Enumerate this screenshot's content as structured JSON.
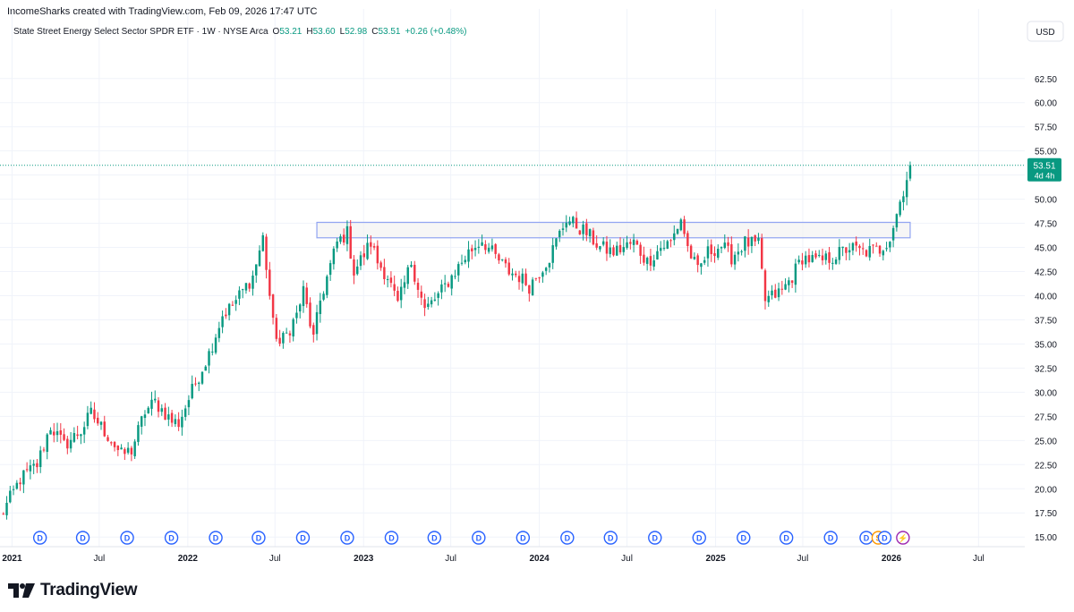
{
  "attribution": "IncomeSharks created with TradingView.com, Feb 09, 2026 17:47 UTC",
  "legend": {
    "title": "State Street Energy Select Sector SPDR ETF · 1W · NYSE Arca",
    "o_label": "O",
    "o": "53.21",
    "h_label": "H",
    "h": "53.60",
    "l_label": "L",
    "l": "52.98",
    "c_label": "C",
    "c": "53.51",
    "change": "+0.26 (+0.48%)"
  },
  "currency_label": "USD",
  "price_badge": {
    "price": "53.51",
    "countdown": "4d 4h"
  },
  "brand": "TradingView",
  "event_markers": [
    {
      "label": "D",
      "date": "2021-02-28"
    },
    {
      "label": "D",
      "date": "2021-05-28"
    },
    {
      "label": "D",
      "date": "2021-08-28"
    },
    {
      "label": "D",
      "date": "2021-11-28"
    },
    {
      "label": "D",
      "date": "2022-02-28"
    },
    {
      "label": "D",
      "date": "2022-05-28"
    },
    {
      "label": "D",
      "date": "2022-08-28"
    },
    {
      "label": "D",
      "date": "2022-11-28"
    },
    {
      "label": "D",
      "date": "2023-02-28"
    },
    {
      "label": "D",
      "date": "2023-05-28"
    },
    {
      "label": "D",
      "date": "2023-08-28"
    },
    {
      "label": "D",
      "date": "2023-11-28"
    },
    {
      "label": "D",
      "date": "2024-02-28"
    },
    {
      "label": "D",
      "date": "2024-05-28"
    },
    {
      "label": "D",
      "date": "2024-08-28"
    },
    {
      "label": "D",
      "date": "2024-11-28"
    },
    {
      "label": "D",
      "date": "2025-02-28"
    },
    {
      "label": "D",
      "date": "2025-05-28"
    },
    {
      "label": "D",
      "date": "2025-08-28"
    },
    {
      "label": "D",
      "date": "2025-11-10"
    },
    {
      "label": "S",
      "date": "2025-12-05"
    },
    {
      "label": "D",
      "date": "2025-12-18"
    },
    {
      "label": "⚡",
      "date": "2026-01-25"
    }
  ],
  "colors": {
    "up": "#089981",
    "down": "#f23645",
    "grid": "#f0f3fa",
    "axis_text": "#131722",
    "zone_border": "#90a4f2",
    "zone_fill": "#f0f0f0",
    "dividend_marker": "#2962ff",
    "split_marker": "#ff9800",
    "lightning_marker": "#9c27b0",
    "last_price_line": "#089981"
  },
  "chart_data": {
    "type": "candlestick",
    "title": "State Street Energy Select Sector SPDR ETF · 1W · NYSE Arca",
    "interval": "1W",
    "ylabel": "USD",
    "y_scale": "linear",
    "ylim": [
      14.0,
      66.0
    ],
    "y_ticks": [
      15.0,
      17.5,
      20.0,
      22.5,
      25.0,
      27.5,
      30.0,
      32.5,
      35.0,
      37.5,
      40.0,
      42.5,
      45.0,
      47.5,
      50.0,
      52.5,
      55.0,
      57.5,
      60.0,
      62.5
    ],
    "x_range": [
      "2020-12-07",
      "2026-10-05"
    ],
    "x_ticks": [
      {
        "label": "2021",
        "date": "2021-01-01"
      },
      {
        "label": "Jul",
        "date": "2021-07-01"
      },
      {
        "label": "2022",
        "date": "2022-01-01"
      },
      {
        "label": "Jul",
        "date": "2022-07-01"
      },
      {
        "label": "2023",
        "date": "2023-01-01"
      },
      {
        "label": "Jul",
        "date": "2023-07-01"
      },
      {
        "label": "2024",
        "date": "2024-01-01"
      },
      {
        "label": "Jul",
        "date": "2024-07-01"
      },
      {
        "label": "2025",
        "date": "2025-01-01"
      },
      {
        "label": "Jul",
        "date": "2025-07-01"
      },
      {
        "label": "2026",
        "date": "2026-01-01"
      },
      {
        "label": "Jul",
        "date": "2026-07-01"
      }
    ],
    "grid": true,
    "last_price": 53.51,
    "resistance_zone": {
      "from": "2022-09-26",
      "to": "2026-02-09",
      "low": 46.0,
      "high": 47.6
    },
    "anchors": [
      [
        "2020-12-07",
        17.0
      ],
      [
        "2021-01-18",
        21.0
      ],
      [
        "2021-02-22",
        22.5
      ],
      [
        "2021-03-22",
        26.5
      ],
      [
        "2021-04-19",
        24.5
      ],
      [
        "2021-05-24",
        26.0
      ],
      [
        "2021-06-14",
        27.8
      ],
      [
        "2021-07-19",
        25.5
      ],
      [
        "2021-08-16",
        23.5
      ],
      [
        "2021-09-06",
        24.0
      ],
      [
        "2021-10-04",
        28.0
      ],
      [
        "2021-10-25",
        29.0
      ],
      [
        "2021-11-29",
        27.0
      ],
      [
        "2021-12-13",
        26.8
      ],
      [
        "2022-01-17",
        31.0
      ],
      [
        "2022-02-14",
        34.0
      ],
      [
        "2022-03-14",
        38.0
      ],
      [
        "2022-04-04",
        39.0
      ],
      [
        "2022-05-16",
        42.0
      ],
      [
        "2022-06-06",
        46.0
      ],
      [
        "2022-06-27",
        37.0
      ],
      [
        "2022-07-11",
        35.0
      ],
      [
        "2022-07-25",
        36.0
      ],
      [
        "2022-08-15",
        38.0
      ],
      [
        "2022-08-29",
        40.5
      ],
      [
        "2022-09-19",
        35.5
      ],
      [
        "2022-10-03",
        39.5
      ],
      [
        "2022-11-07",
        45.5
      ],
      [
        "2022-11-28",
        46.5
      ],
      [
        "2022-12-12",
        42.5
      ],
      [
        "2023-01-16",
        45.5
      ],
      [
        "2023-01-30",
        43.5
      ],
      [
        "2023-02-20",
        42.0
      ],
      [
        "2023-03-13",
        39.0
      ],
      [
        "2023-04-10",
        43.5
      ],
      [
        "2023-05-08",
        38.5
      ],
      [
        "2023-06-05",
        40.0
      ],
      [
        "2023-07-03",
        42.0
      ],
      [
        "2023-08-07",
        44.5
      ],
      [
        "2023-09-04",
        45.8
      ],
      [
        "2023-10-02",
        44.0
      ],
      [
        "2023-10-30",
        42.5
      ],
      [
        "2023-11-20",
        42.0
      ],
      [
        "2023-12-11",
        41.0
      ],
      [
        "2024-01-22",
        44.0
      ],
      [
        "2024-02-26",
        48.0
      ],
      [
        "2024-04-08",
        46.5
      ],
      [
        "2024-05-06",
        45.0
      ],
      [
        "2024-06-03",
        44.5
      ],
      [
        "2024-07-15",
        45.5
      ],
      [
        "2024-08-12",
        43.5
      ],
      [
        "2024-09-09",
        45.0
      ],
      [
        "2024-09-30",
        45.5
      ],
      [
        "2024-10-21",
        48.0
      ],
      [
        "2024-11-04",
        45.0
      ],
      [
        "2024-11-25",
        42.5
      ],
      [
        "2024-12-16",
        44.5
      ],
      [
        "2025-01-13",
        45.2
      ],
      [
        "2025-02-03",
        44.0
      ],
      [
        "2025-03-03",
        45.5
      ],
      [
        "2025-03-31",
        45.2
      ],
      [
        "2025-04-14",
        39.5
      ],
      [
        "2025-05-19",
        40.5
      ],
      [
        "2025-06-09",
        42.0
      ],
      [
        "2025-06-30",
        44.0
      ],
      [
        "2025-08-04",
        43.5
      ],
      [
        "2025-09-01",
        44.0
      ],
      [
        "2025-10-06",
        45.0
      ],
      [
        "2025-11-03",
        44.5
      ],
      [
        "2025-12-08",
        44.8
      ],
      [
        "2025-12-29",
        46.0
      ],
      [
        "2026-01-12",
        48.5
      ],
      [
        "2026-01-26",
        51.0
      ],
      [
        "2026-02-09",
        53.51
      ]
    ]
  }
}
